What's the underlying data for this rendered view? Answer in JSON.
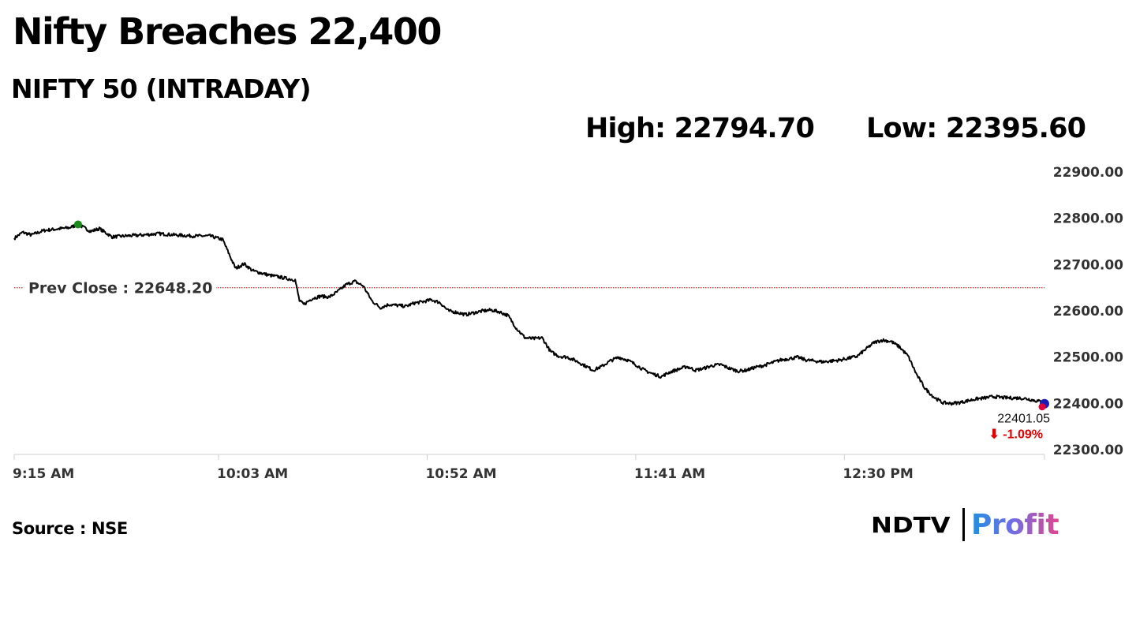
{
  "headline": "Nifty Breaches 22,400",
  "subheadline": "NIFTY 50 (INTRADAY)",
  "stats": {
    "high": "High: 22794.70",
    "low": "Low: 22395.60"
  },
  "source": "Source : NSE",
  "logo": {
    "brand": "NDTV",
    "product": "Profit"
  },
  "colors": {
    "line": "#000000",
    "prev_close": "#cc0000",
    "high_marker": "#1a8a1a",
    "last_marker_fill": "#e0003c",
    "last_marker_ring": "#1b1bb5",
    "change_negative": "#e00000",
    "axis_text": "#333333"
  },
  "chart_data": {
    "type": "line",
    "title": "NIFTY 50 (INTRADAY)",
    "x_tick_labels": [
      "9:15 AM",
      "10:03 AM",
      "10:52 AM",
      "11:41 AM",
      "12:30 PM"
    ],
    "x_tick_minutes": [
      0,
      48,
      97,
      146,
      195
    ],
    "x_range_minutes": [
      0,
      242
    ],
    "ylim": [
      22300,
      22900
    ],
    "y_ticks": [
      22300,
      22400,
      22500,
      22600,
      22700,
      22800,
      22900
    ],
    "y_tick_labels": [
      "22300.00",
      "22400.00",
      "22500.00",
      "22600.00",
      "22700.00",
      "22800.00",
      "22900.00"
    ],
    "y_axis_side": "right",
    "grid": false,
    "reference_line": {
      "label": "Prev Close : 22648.20",
      "value": 22648.2
    },
    "high_point": {
      "x": 15,
      "y": 22785
    },
    "last_value_label": "22401.05",
    "last_change_label": "⬇ -1.09%",
    "series": [
      {
        "x": [
          0,
          2,
          4,
          7,
          10,
          13,
          15,
          18,
          20,
          23,
          26,
          30,
          34,
          38,
          42,
          46,
          49,
          51,
          52,
          54,
          56,
          58,
          60,
          62,
          64,
          66,
          67,
          68,
          70,
          72,
          74,
          76,
          78,
          80,
          82,
          84,
          86,
          88,
          90,
          92,
          94,
          96,
          98,
          100,
          102,
          104,
          106,
          108,
          110,
          112,
          114,
          116,
          118,
          120,
          122,
          124,
          126,
          128,
          130,
          132,
          134,
          136,
          138,
          140,
          142,
          144,
          146,
          148,
          150,
          152,
          154,
          156,
          158,
          160,
          162,
          164,
          166,
          168,
          170,
          172,
          174,
          176,
          178,
          180,
          182,
          184,
          186,
          188,
          190,
          192,
          194,
          196,
          198,
          200,
          202,
          204,
          206,
          208,
          210,
          212,
          214,
          216,
          218,
          220,
          222,
          224,
          226,
          228,
          230,
          232,
          234,
          236,
          238,
          240,
          242
        ],
        "values": [
          22755,
          22768,
          22762,
          22772,
          22775,
          22778,
          22785,
          22770,
          22776,
          22758,
          22760,
          22762,
          22765,
          22762,
          22760,
          22760,
          22752,
          22710,
          22690,
          22700,
          22685,
          22680,
          22675,
          22672,
          22668,
          22665,
          22620,
          22612,
          22625,
          22630,
          22628,
          22640,
          22655,
          22662,
          22652,
          22620,
          22605,
          22612,
          22610,
          22608,
          22615,
          22618,
          22622,
          22616,
          22598,
          22595,
          22590,
          22594,
          22598,
          22600,
          22596,
          22588,
          22560,
          22540,
          22538,
          22540,
          22510,
          22500,
          22498,
          22490,
          22480,
          22470,
          22478,
          22490,
          22498,
          22492,
          22482,
          22470,
          22462,
          22456,
          22466,
          22472,
          22478,
          22470,
          22474,
          22480,
          22482,
          22474,
          22468,
          22470,
          22476,
          22480,
          22486,
          22492,
          22495,
          22498,
          22492,
          22490,
          22488,
          22490,
          22492,
          22496,
          22500,
          22515,
          22530,
          22535,
          22532,
          22520,
          22500,
          22460,
          22430,
          22412,
          22400,
          22398,
          22400,
          22404,
          22408,
          22410,
          22413,
          22411,
          22410,
          22410,
          22408,
          22404,
          22401.05
        ]
      }
    ]
  }
}
